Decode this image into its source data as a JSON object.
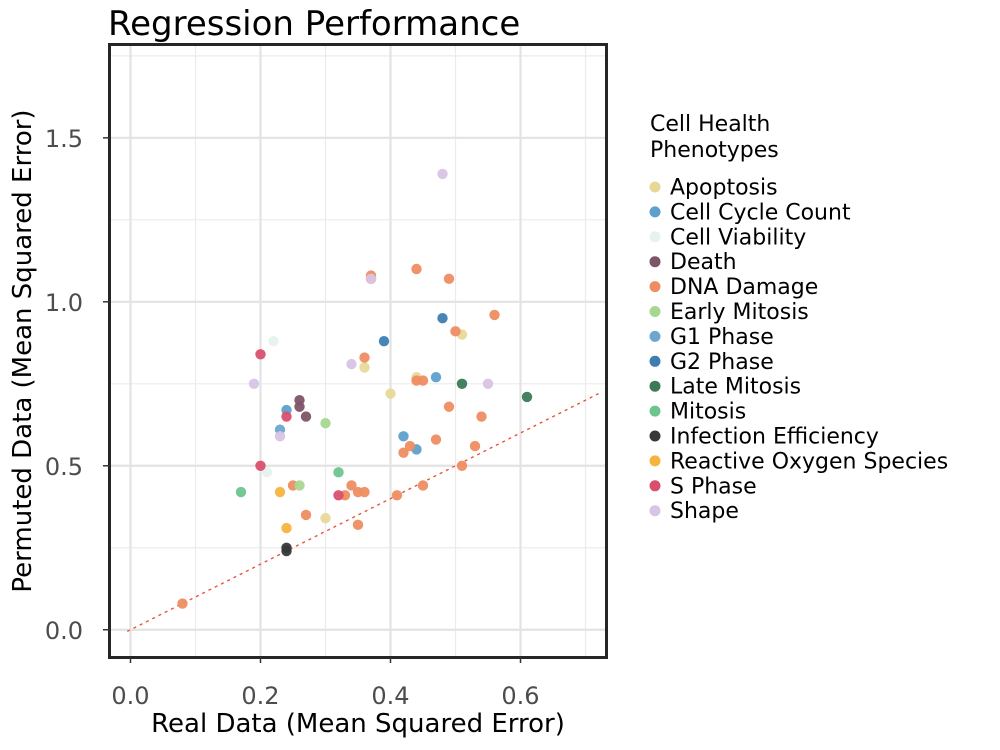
{
  "chart_data": {
    "type": "scatter",
    "title": "Regression Performance",
    "xlabel": "Real Data (Mean Squared Error)",
    "ylabel": "Permuted Data (Mean Squared Error)",
    "xlim": [
      -0.03,
      0.73
    ],
    "ylim": [
      -0.08,
      1.78
    ],
    "x_ticks": [
      "0.0",
      "0.2",
      "0.4",
      "0.6"
    ],
    "y_ticks": [
      "0.0",
      "0.5",
      "1.0",
      "1.5"
    ],
    "x_tick_values": [
      0.0,
      0.2,
      0.4,
      0.6
    ],
    "y_tick_values": [
      0.0,
      0.5,
      1.0,
      1.5
    ],
    "grid": true,
    "reference_line": {
      "type": "identity",
      "style": "dotted",
      "color": "#E8553A"
    },
    "legend": {
      "title_line1": "Cell Health",
      "title_line2": "Phenotypes",
      "placement": "right"
    },
    "series": [
      {
        "name": "Apoptosis",
        "color": "#E8D898",
        "points": [
          [
            0.3,
            0.34
          ],
          [
            0.36,
            0.8
          ],
          [
            0.4,
            0.72
          ],
          [
            0.44,
            0.77
          ],
          [
            0.51,
            0.9
          ]
        ]
      },
      {
        "name": "Cell Cycle Count",
        "color": "#5DA0CC",
        "points": [
          [
            0.24,
            0.67
          ],
          [
            0.42,
            0.59
          ],
          [
            0.44,
            0.55
          ],
          [
            0.47,
            0.77
          ]
        ]
      },
      {
        "name": "Cell Viability",
        "color": "#E6F2EE",
        "points": [
          [
            0.21,
            0.48
          ],
          [
            0.22,
            0.88
          ]
        ]
      },
      {
        "name": "Death",
        "color": "#7D5468",
        "points": [
          [
            0.26,
            0.68
          ],
          [
            0.26,
            0.7
          ],
          [
            0.27,
            0.65
          ]
        ]
      },
      {
        "name": "DNA Damage",
        "color": "#EE8D62",
        "points": [
          [
            0.08,
            0.08
          ],
          [
            0.25,
            0.44
          ],
          [
            0.27,
            0.35
          ],
          [
            0.33,
            0.41
          ],
          [
            0.34,
            0.44
          ],
          [
            0.35,
            0.32
          ],
          [
            0.35,
            0.42
          ],
          [
            0.36,
            0.42
          ],
          [
            0.36,
            0.83
          ],
          [
            0.37,
            1.07
          ],
          [
            0.37,
            1.08
          ],
          [
            0.41,
            0.41
          ],
          [
            0.42,
            0.54
          ],
          [
            0.43,
            0.56
          ],
          [
            0.44,
            0.76
          ],
          [
            0.44,
            1.1
          ],
          [
            0.45,
            0.44
          ],
          [
            0.45,
            0.76
          ],
          [
            0.47,
            0.58
          ],
          [
            0.49,
            0.68
          ],
          [
            0.49,
            1.07
          ],
          [
            0.5,
            0.91
          ],
          [
            0.51,
            0.5
          ],
          [
            0.53,
            0.56
          ],
          [
            0.54,
            0.65
          ],
          [
            0.56,
            0.96
          ]
        ]
      },
      {
        "name": "Early Mitosis",
        "color": "#A8D890",
        "points": [
          [
            0.26,
            0.44
          ],
          [
            0.3,
            0.63
          ]
        ]
      },
      {
        "name": "G1 Phase",
        "color": "#6EA6D0",
        "points": [
          [
            0.23,
            0.61
          ]
        ]
      },
      {
        "name": "G2 Phase",
        "color": "#3E7DB0",
        "points": [
          [
            0.39,
            0.88
          ],
          [
            0.48,
            0.95
          ]
        ]
      },
      {
        "name": "Late Mitosis",
        "color": "#3A7A55",
        "points": [
          [
            0.51,
            0.75
          ],
          [
            0.61,
            0.71
          ]
        ]
      },
      {
        "name": "Mitosis",
        "color": "#6EC48F",
        "points": [
          [
            0.17,
            0.42
          ],
          [
            0.32,
            0.48
          ]
        ]
      },
      {
        "name": "Infection Efficiency",
        "color": "#383838",
        "points": [
          [
            0.24,
            0.24
          ],
          [
            0.24,
            0.25
          ]
        ]
      },
      {
        "name": "Reactive Oxygen Species",
        "color": "#F6B43E",
        "points": [
          [
            0.23,
            0.42
          ],
          [
            0.24,
            0.31
          ]
        ]
      },
      {
        "name": "S Phase",
        "color": "#D9506E",
        "points": [
          [
            0.2,
            0.5
          ],
          [
            0.2,
            0.84
          ],
          [
            0.24,
            0.65
          ],
          [
            0.32,
            0.41
          ]
        ]
      },
      {
        "name": "Shape",
        "color": "#D8C4E4",
        "points": [
          [
            0.19,
            0.75
          ],
          [
            0.23,
            0.59
          ],
          [
            0.34,
            0.81
          ],
          [
            0.37,
            1.07
          ],
          [
            0.48,
            1.39
          ],
          [
            0.55,
            0.75
          ]
        ]
      }
    ]
  }
}
